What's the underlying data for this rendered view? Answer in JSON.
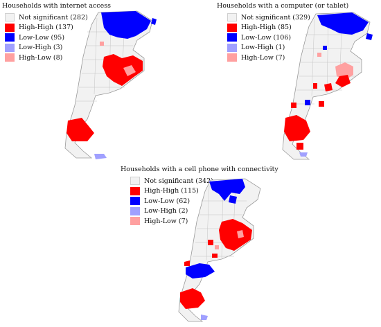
{
  "colors": {
    "not_significant": "#f2f2f2",
    "high_high": "#ff0000",
    "low_low": "#0000ff",
    "low_high": "#a0a0ff",
    "high_low": "#ffa0a0",
    "outline": "#9a9a9a"
  },
  "panels": [
    {
      "title": "Households with internet access",
      "legend": [
        {
          "cls": "not_significant",
          "label": "Not significant (282)"
        },
        {
          "cls": "high_high",
          "label": "High-High (137)"
        },
        {
          "cls": "low_low",
          "label": "Low-Low (95)"
        },
        {
          "cls": "low_high",
          "label": "Low-High (3)"
        },
        {
          "cls": "high_low",
          "label": "High-Low (8)"
        }
      ]
    },
    {
      "title": "Households with a computer (or tablet)",
      "legend": [
        {
          "cls": "not_significant",
          "label": "Not significant (329)"
        },
        {
          "cls": "high_high",
          "label": "High-High (85)"
        },
        {
          "cls": "low_low",
          "label": "Low-Low (106)"
        },
        {
          "cls": "low_high",
          "label": "Low-High (1)"
        },
        {
          "cls": "high_low",
          "label": "High-Low (7)"
        }
      ]
    },
    {
      "title": "Households with a cell phone with connectivity",
      "legend": [
        {
          "cls": "not_significant",
          "label": "Not significant (342)"
        },
        {
          "cls": "high_high",
          "label": "High-High (115)"
        },
        {
          "cls": "low_low",
          "label": "Low-Low (62)"
        },
        {
          "cls": "low_high",
          "label": "Low-High (2)"
        },
        {
          "cls": "high_low",
          "label": "High-Low (7)"
        }
      ]
    }
  ]
}
